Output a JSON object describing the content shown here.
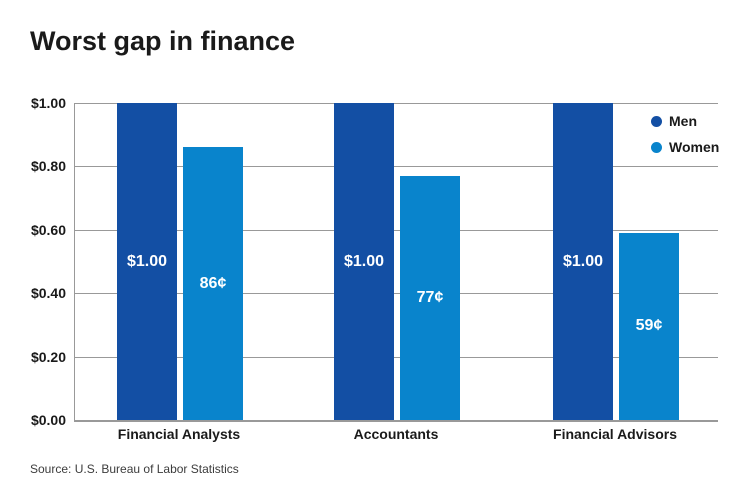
{
  "page": {
    "title": "Worst gap in finance",
    "source": "Source: U.S. Bureau of Labor Statistics"
  },
  "legend": {
    "items": [
      {
        "label": "Men",
        "color": "#134fa4"
      },
      {
        "label": "Women",
        "color": "#0984cc"
      }
    ]
  },
  "chart_data": {
    "type": "bar",
    "title": "Worst gap in finance",
    "categories": [
      "Financial Analysts",
      "Accountants",
      "Financial Advisors"
    ],
    "series": [
      {
        "name": "Men",
        "color": "#134fa4",
        "values": [
          1.0,
          1.0,
          1.0
        ],
        "bar_labels": [
          "$1.00",
          "$1.00",
          "$1.00"
        ]
      },
      {
        "name": "Women",
        "color": "#0984cc",
        "values": [
          0.86,
          0.77,
          0.59
        ],
        "bar_labels": [
          "86¢",
          "77¢",
          "59¢"
        ]
      }
    ],
    "y_axis": {
      "ticks": [
        {
          "value": 1.0,
          "label": "$1.00"
        },
        {
          "value": 0.8,
          "label": "$0.80"
        },
        {
          "value": 0.6,
          "label": "$0.60"
        },
        {
          "value": 0.4,
          "label": "$0.40"
        },
        {
          "value": 0.2,
          "label": "$0.20"
        },
        {
          "value": 0.0,
          "label": "$0.00"
        }
      ],
      "ylim": [
        0,
        1
      ]
    },
    "grid": true,
    "grid_color": "#999999",
    "legend_position": "top-right",
    "xlabel": "",
    "ylabel": "",
    "source": "Source: U.S. Bureau of Labor Statistics"
  }
}
